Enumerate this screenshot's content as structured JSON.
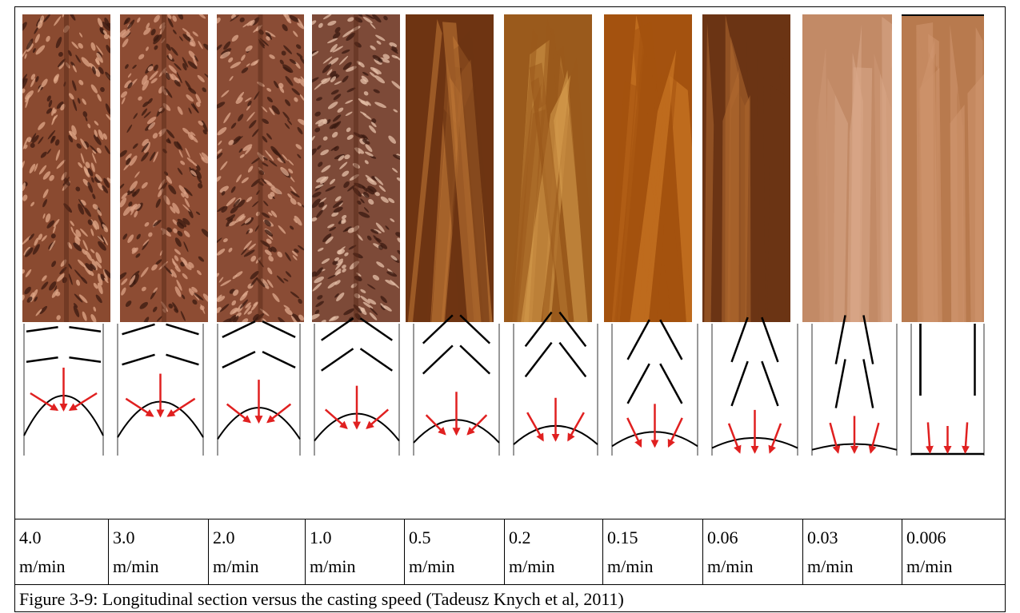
{
  "figure": {
    "cells": [
      {
        "speed": "4.0",
        "unit": "m/min"
      },
      {
        "speed": "3.0",
        "unit": "m/min"
      },
      {
        "speed": "2.0",
        "unit": "m/min"
      },
      {
        "speed": "1.0",
        "unit": "m/min"
      },
      {
        "speed": "0.5",
        "unit": "m/min"
      },
      {
        "speed": "0.2",
        "unit": "m/min"
      },
      {
        "speed": "0.15",
        "unit": "m/min"
      },
      {
        "speed": "0.06",
        "unit": "m/min"
      },
      {
        "speed": "0.03",
        "unit": "m/min"
      },
      {
        "speed": "0.006",
        "unit": "m/min"
      }
    ],
    "caption": "Figure 3-9: Longitudinal section versus the casting speed  (Tadeusz Knych et al, 2011)"
  }
}
